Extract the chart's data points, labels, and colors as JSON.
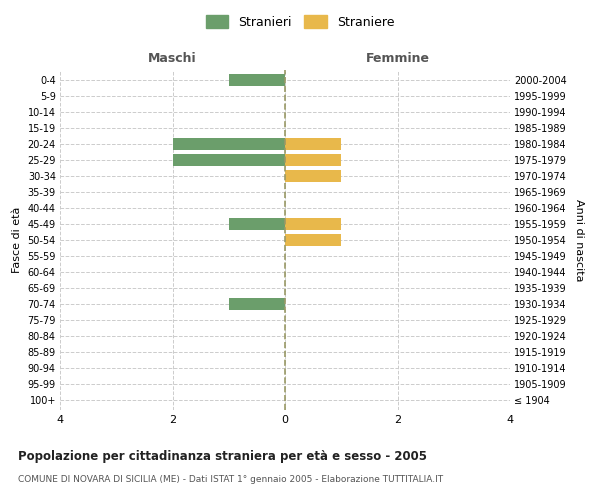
{
  "age_groups": [
    "100+",
    "95-99",
    "90-94",
    "85-89",
    "80-84",
    "75-79",
    "70-74",
    "65-69",
    "60-64",
    "55-59",
    "50-54",
    "45-49",
    "40-44",
    "35-39",
    "30-34",
    "25-29",
    "20-24",
    "15-19",
    "10-14",
    "5-9",
    "0-4"
  ],
  "birth_years": [
    "≤ 1904",
    "1905-1909",
    "1910-1914",
    "1915-1919",
    "1920-1924",
    "1925-1929",
    "1930-1934",
    "1935-1939",
    "1940-1944",
    "1945-1949",
    "1950-1954",
    "1955-1959",
    "1960-1964",
    "1965-1969",
    "1970-1974",
    "1975-1979",
    "1980-1984",
    "1985-1989",
    "1990-1994",
    "1995-1999",
    "2000-2004"
  ],
  "males": [
    0,
    0,
    0,
    0,
    0,
    0,
    -1,
    0,
    0,
    0,
    0,
    -1,
    0,
    0,
    0,
    -2,
    -2,
    0,
    0,
    0,
    -1
  ],
  "females": [
    0,
    0,
    0,
    0,
    0,
    0,
    0,
    0,
    0,
    0,
    1,
    1,
    0,
    0,
    1,
    1,
    1,
    0,
    0,
    0,
    0
  ],
  "male_color": "#6b9e6b",
  "female_color": "#e8b84b",
  "xlim": [
    -4,
    4
  ],
  "xlabel_ticks": [
    -4,
    -2,
    0,
    2,
    4
  ],
  "xlabel_labels": [
    "4",
    "2",
    "0",
    "2",
    "4"
  ],
  "title": "Popolazione per cittadinanza straniera per età e sesso - 2005",
  "subtitle": "COMUNE DI NOVARA DI SICILIA (ME) - Dati ISTAT 1° gennaio 2005 - Elaborazione TUTTITALIA.IT",
  "legend_stranieri": "Stranieri",
  "legend_straniere": "Straniere",
  "ylabel_left": "Fasce di età",
  "ylabel_right": "Anni di nascita",
  "header_maschi": "Maschi",
  "header_femmine": "Femmine",
  "background_color": "#ffffff",
  "grid_color": "#cccccc",
  "bar_height": 0.75
}
